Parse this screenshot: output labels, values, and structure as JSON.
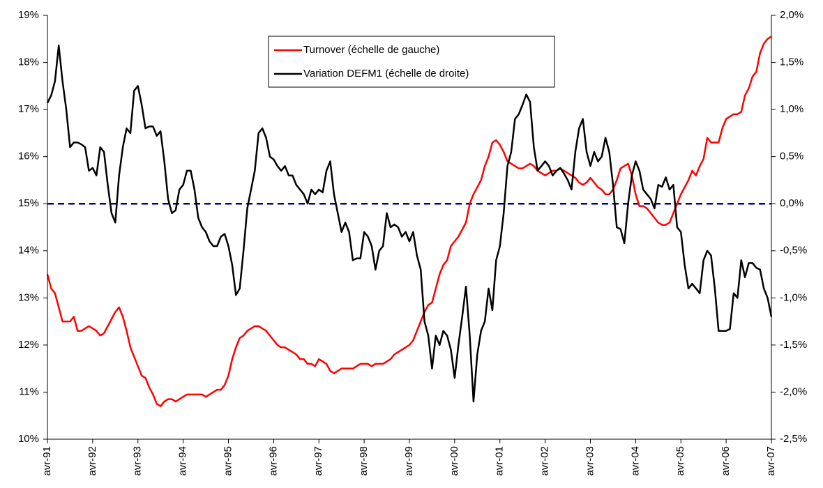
{
  "chart_data": {
    "type": "line",
    "categories": [
      "avr-91",
      null,
      null,
      null,
      null,
      null,
      null,
      null,
      null,
      null,
      null,
      null,
      "avr-92",
      null,
      null,
      null,
      null,
      null,
      null,
      null,
      null,
      null,
      null,
      null,
      "avr-93",
      null,
      null,
      null,
      null,
      null,
      null,
      null,
      null,
      null,
      null,
      null,
      "avr-94",
      null,
      null,
      null,
      null,
      null,
      null,
      null,
      null,
      null,
      null,
      null,
      "avr-95",
      null,
      null,
      null,
      null,
      null,
      null,
      null,
      null,
      null,
      null,
      null,
      "avr-96",
      null,
      null,
      null,
      null,
      null,
      null,
      null,
      null,
      null,
      null,
      null,
      "avr-97",
      null,
      null,
      null,
      null,
      null,
      null,
      null,
      null,
      null,
      null,
      null,
      "avr-98",
      null,
      null,
      null,
      null,
      null,
      null,
      null,
      null,
      null,
      null,
      null,
      "avr-99",
      null,
      null,
      null,
      null,
      null,
      null,
      null,
      null,
      null,
      null,
      null,
      "avr-00",
      null,
      null,
      null,
      null,
      null,
      null,
      null,
      null,
      null,
      null,
      null,
      "avr-01",
      null,
      null,
      null,
      null,
      null,
      null,
      null,
      null,
      null,
      null,
      null,
      "avr-02",
      null,
      null,
      null,
      null,
      null,
      null,
      null,
      null,
      null,
      null,
      null,
      "avr-03",
      null,
      null,
      null,
      null,
      null,
      null,
      null,
      null,
      null,
      null,
      null,
      "avr-04",
      null,
      null,
      null,
      null,
      null,
      null,
      null,
      null,
      null,
      null,
      null,
      "avr-05",
      null,
      null,
      null,
      null,
      null,
      null,
      null,
      null,
      null,
      null,
      null,
      "avr-06",
      null,
      null,
      null,
      null,
      null,
      null,
      null,
      null,
      null,
      null,
      null,
      "avr-07"
    ],
    "series": [
      {
        "name": "Turnover (échelle de gauche)",
        "color": "#ff0000",
        "axis": "y",
        "values": [
          13.5,
          13.2,
          13.1,
          12.8,
          12.5,
          12.5,
          12.5,
          12.6,
          12.3,
          12.3,
          12.35,
          12.4,
          12.35,
          12.3,
          12.2,
          12.25,
          12.4,
          12.55,
          12.7,
          12.8,
          12.6,
          12.3,
          11.95,
          11.75,
          11.55,
          11.35,
          11.3,
          11.1,
          10.95,
          10.75,
          10.7,
          10.8,
          10.85,
          10.85,
          10.8,
          10.85,
          10.9,
          10.95,
          10.95,
          10.95,
          10.95,
          10.95,
          10.9,
          10.95,
          11.0,
          11.05,
          11.05,
          11.15,
          11.35,
          11.7,
          11.95,
          12.15,
          12.2,
          12.3,
          12.35,
          12.4,
          12.4,
          12.35,
          12.3,
          12.2,
          12.1,
          12.0,
          11.95,
          11.95,
          11.9,
          11.85,
          11.8,
          11.7,
          11.7,
          11.6,
          11.6,
          11.55,
          11.7,
          11.65,
          11.6,
          11.45,
          11.4,
          11.45,
          11.5,
          11.5,
          11.5,
          11.5,
          11.55,
          11.6,
          11.6,
          11.6,
          11.55,
          11.6,
          11.6,
          11.6,
          11.65,
          11.7,
          11.8,
          11.85,
          11.9,
          11.95,
          12.0,
          12.1,
          12.3,
          12.5,
          12.7,
          12.85,
          12.9,
          13.2,
          13.5,
          13.7,
          13.8,
          14.1,
          14.2,
          14.3,
          14.45,
          14.6,
          15.0,
          15.2,
          15.35,
          15.5,
          15.8,
          16.0,
          16.3,
          16.35,
          16.25,
          16.1,
          15.9,
          15.85,
          15.8,
          15.75,
          15.75,
          15.8,
          15.85,
          15.8,
          15.7,
          15.65,
          15.6,
          15.65,
          15.7,
          15.7,
          15.75,
          15.7,
          15.65,
          15.6,
          15.55,
          15.45,
          15.4,
          15.45,
          15.55,
          15.45,
          15.35,
          15.3,
          15.2,
          15.2,
          15.3,
          15.5,
          15.75,
          15.8,
          15.85,
          15.6,
          15.2,
          14.95,
          14.95,
          14.9,
          14.8,
          14.7,
          14.6,
          14.55,
          14.55,
          14.6,
          14.8,
          15.0,
          15.2,
          15.35,
          15.5,
          15.7,
          15.6,
          15.8,
          15.95,
          16.4,
          16.3,
          16.3,
          16.3,
          16.6,
          16.8,
          16.85,
          16.9,
          16.9,
          16.95,
          17.3,
          17.45,
          17.7,
          17.8,
          18.2,
          18.4,
          18.5,
          18.55
        ]
      },
      {
        "name": "Variation DEFM1 (échelle de droite)",
        "color": "#000000",
        "axis": "y2",
        "values": [
          1.07,
          1.15,
          1.3,
          1.68,
          1.3,
          1.0,
          0.6,
          0.65,
          0.65,
          0.63,
          0.6,
          0.35,
          0.38,
          0.3,
          0.6,
          0.55,
          0.2,
          -0.1,
          -0.2,
          0.3,
          0.6,
          0.8,
          0.75,
          1.2,
          1.25,
          1.05,
          0.8,
          0.82,
          0.82,
          0.72,
          0.77,
          0.45,
          0.05,
          -0.1,
          -0.07,
          0.15,
          0.2,
          0.35,
          0.35,
          0.15,
          -0.15,
          -0.25,
          -0.3,
          -0.4,
          -0.45,
          -0.45,
          -0.35,
          -0.32,
          -0.45,
          -0.65,
          -0.97,
          -0.9,
          -0.5,
          -0.05,
          0.15,
          0.35,
          0.75,
          0.8,
          0.7,
          0.5,
          0.47,
          0.4,
          0.35,
          0.4,
          0.3,
          0.3,
          0.2,
          0.15,
          0.1,
          0.0,
          0.15,
          0.1,
          0.15,
          0.12,
          0.35,
          0.45,
          0.1,
          -0.1,
          -0.3,
          -0.2,
          -0.3,
          -0.6,
          -0.58,
          -0.58,
          -0.3,
          -0.35,
          -0.45,
          -0.7,
          -0.5,
          -0.45,
          -0.1,
          -0.25,
          -0.22,
          -0.25,
          -0.35,
          -0.3,
          -0.4,
          -0.3,
          -0.55,
          -0.7,
          -1.25,
          -1.4,
          -1.75,
          -1.4,
          -1.5,
          -1.35,
          -1.4,
          -1.55,
          -1.85,
          -1.5,
          -1.2,
          -0.88,
          -1.4,
          -2.1,
          -1.6,
          -1.35,
          -1.25,
          -0.9,
          -1.13,
          -0.6,
          -0.45,
          -0.1,
          0.4,
          0.55,
          0.9,
          0.95,
          1.05,
          1.16,
          1.08,
          0.6,
          0.35,
          0.4,
          0.45,
          0.4,
          0.3,
          0.35,
          0.38,
          0.32,
          0.25,
          0.15,
          0.55,
          0.8,
          0.9,
          0.55,
          0.4,
          0.55,
          0.45,
          0.5,
          0.7,
          0.55,
          0.2,
          -0.25,
          -0.27,
          -0.42,
          0.0,
          0.3,
          0.45,
          0.35,
          0.15,
          0.1,
          0.05,
          -0.05,
          0.2,
          0.18,
          0.28,
          0.15,
          0.2,
          -0.25,
          -0.3,
          -0.65,
          -0.9,
          -0.85,
          -0.9,
          -0.95,
          -0.6,
          -0.5,
          -0.55,
          -0.9,
          -1.35,
          -1.35,
          -1.35,
          -1.33,
          -0.95,
          -1.0,
          -0.6,
          -0.78,
          -0.63,
          -0.63,
          -0.68,
          -0.7,
          -0.9,
          -1.0,
          -1.2
        ]
      }
    ],
    "ylim": [
      10,
      19
    ],
    "yticks": [
      {
        "value": 10,
        "label": "10%"
      },
      {
        "value": 11,
        "label": "11%"
      },
      {
        "value": 12,
        "label": "12%"
      },
      {
        "value": 13,
        "label": "13%"
      },
      {
        "value": 14,
        "label": "14%"
      },
      {
        "value": 15,
        "label": "15%"
      },
      {
        "value": 16,
        "label": "16%"
      },
      {
        "value": 17,
        "label": "17%"
      },
      {
        "value": 18,
        "label": "18%"
      },
      {
        "value": 19,
        "label": "19%"
      }
    ],
    "y2lim": [
      -2.5,
      2.0
    ],
    "y2ticks": [
      {
        "value": -2.5,
        "label": "-2,5%"
      },
      {
        "value": -2.0,
        "label": "-2,0%"
      },
      {
        "value": -1.5,
        "label": "-1,5%"
      },
      {
        "value": -1.0,
        "label": "-1,0%"
      },
      {
        "value": -0.5,
        "label": "-0,5%"
      },
      {
        "value": 0.0,
        "label": "0,0%"
      },
      {
        "value": 0.5,
        "label": "0,5%"
      },
      {
        "value": 1.0,
        "label": "1,0%"
      },
      {
        "value": 1.5,
        "label": "1,5%"
      },
      {
        "value": 2.0,
        "label": "2,0%"
      }
    ],
    "reference_line": {
      "axis": "y2",
      "value": 0,
      "color": "#000080",
      "style": "dashed"
    },
    "legend": "top"
  }
}
